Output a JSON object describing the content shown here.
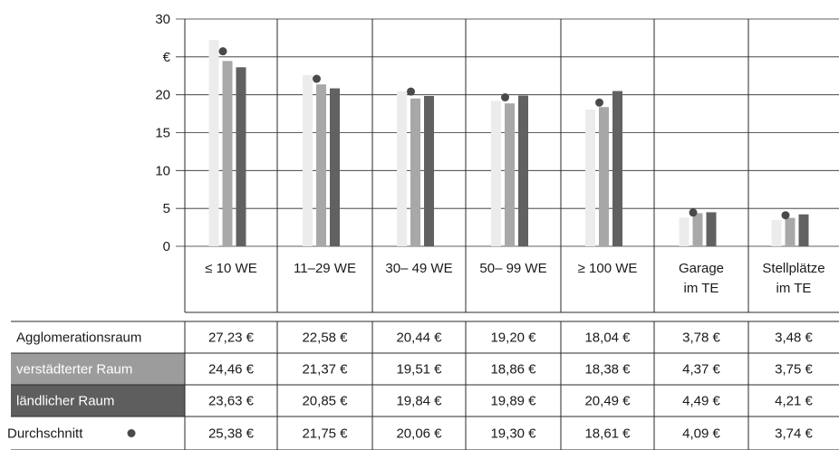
{
  "chart_data": {
    "type": "bar",
    "y_ticks": [
      "30",
      "€",
      "20",
      "15",
      "10",
      "5",
      "0"
    ],
    "ylim": [
      0,
      30
    ],
    "grid": true,
    "categories": [
      [
        "≤ 10 WE"
      ],
      [
        "11–29 WE"
      ],
      [
        "30– 49 WE"
      ],
      [
        "50– 99 WE"
      ],
      [
        "≥ 100 WE"
      ],
      [
        "Garage",
        "im TE"
      ],
      [
        "Stellplätze",
        "im TE"
      ]
    ],
    "series": [
      {
        "name": "Agglomerationsraum",
        "color": "#ececec",
        "values": [
          27.23,
          22.58,
          20.44,
          19.2,
          18.04,
          3.78,
          3.48
        ],
        "labels": [
          "27,23 €",
          "22,58 €",
          "20,44 €",
          "19,20 €",
          "18,04 €",
          "3,78 €",
          "3,48 €"
        ]
      },
      {
        "name": "verstädterter Raum",
        "color": "#a8a8a8",
        "values": [
          24.46,
          21.37,
          19.51,
          18.86,
          18.38,
          4.37,
          3.75
        ],
        "labels": [
          "24,46 €",
          "21,37 €",
          "19,51 €",
          "18,86 €",
          "18,38 €",
          "4,37 €",
          "3,75 €"
        ]
      },
      {
        "name": "ländlicher Raum",
        "color": "#616161",
        "values": [
          23.63,
          20.85,
          19.84,
          19.89,
          20.49,
          4.49,
          4.21
        ],
        "labels": [
          "23,63 €",
          "20,85 €",
          "19,84 €",
          "19,89 €",
          "20,49 €",
          "4,49 €",
          "4,21 €"
        ]
      }
    ],
    "average": {
      "name": "Durchschnitt",
      "color": "#4a4a4a",
      "values": [
        25.38,
        21.75,
        20.06,
        19.3,
        18.61,
        4.09,
        3.74
      ],
      "labels": [
        "25,38 €",
        "21,75 €",
        "20,06 €",
        "19,30 €",
        "18,61 €",
        "4,09 €",
        "3,74 €"
      ]
    }
  }
}
